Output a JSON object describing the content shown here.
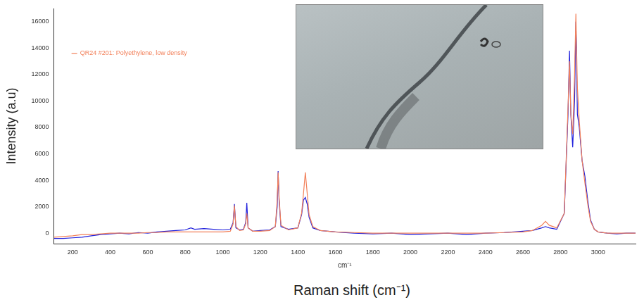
{
  "chart_data": {
    "type": "line",
    "ylabel": "Intensity (a.u)",
    "xlabel": "Raman shift (cm⁻¹)",
    "annotations": [
      "cm⁻¹"
    ],
    "xlim": [
      100,
      3200
    ],
    "xticks": [
      200,
      400,
      600,
      800,
      1000,
      1200,
      1400,
      1600,
      1800,
      2000,
      2200,
      2400,
      2600,
      2800,
      3000
    ],
    "ylim": [
      -800,
      17000
    ],
    "yticks": [
      0,
      2000,
      4000,
      6000,
      8000,
      10000,
      12000,
      14000,
      16000
    ],
    "grid": false,
    "legend": "upper left",
    "x": [
      100,
      150,
      200,
      250,
      300,
      350,
      400,
      450,
      500,
      550,
      600,
      650,
      700,
      750,
      800,
      830,
      850,
      900,
      950,
      1000,
      1040,
      1055,
      1062,
      1070,
      1090,
      1110,
      1122,
      1128,
      1135,
      1160,
      1200,
      1250,
      1280,
      1290,
      1295,
      1300,
      1310,
      1350,
      1400,
      1420,
      1430,
      1440,
      1450,
      1460,
      1480,
      1520,
      1600,
      1700,
      1800,
      1900,
      2000,
      2100,
      2200,
      2300,
      2400,
      2500,
      2600,
      2650,
      2700,
      2720,
      2740,
      2780,
      2820,
      2840,
      2848,
      2855,
      2865,
      2875,
      2882,
      2890,
      2900,
      2915,
      2930,
      2945,
      2960,
      2980,
      3000,
      3050,
      3100,
      3150,
      3200
    ],
    "series": [
      {
        "color": "#1f1fdc",
        "values": [
          -400,
          -400,
          -350,
          -300,
          -200,
          -100,
          -50,
          0,
          -50,
          50,
          0,
          100,
          150,
          200,
          250,
          400,
          300,
          350,
          300,
          250,
          300,
          800,
          2200,
          400,
          250,
          300,
          800,
          2300,
          400,
          150,
          200,
          250,
          500,
          2000,
          4700,
          2500,
          500,
          300,
          400,
          1400,
          2500,
          2700,
          2200,
          1200,
          400,
          200,
          100,
          0,
          -50,
          0,
          -100,
          -50,
          0,
          -100,
          0,
          50,
          150,
          200,
          400,
          500,
          400,
          300,
          1500,
          9000,
          13800,
          9000,
          6500,
          10000,
          16000,
          9000,
          8000,
          5500,
          4300,
          2500,
          1000,
          300,
          100,
          0,
          -50,
          0,
          0
        ]
      },
      {
        "name": "QR24 #201: Polyethylene, low density",
        "color": "#f2805a",
        "values": [
          -300,
          -250,
          -200,
          -100,
          -100,
          -50,
          0,
          0,
          0,
          0,
          50,
          50,
          100,
          100,
          100,
          100,
          100,
          100,
          100,
          100,
          150,
          700,
          2100,
          500,
          200,
          250,
          700,
          1500,
          400,
          150,
          150,
          200,
          500,
          2500,
          4600,
          2800,
          600,
          250,
          400,
          1500,
          3000,
          4600,
          3000,
          1400,
          500,
          200,
          100,
          50,
          0,
          0,
          0,
          0,
          0,
          0,
          0,
          50,
          100,
          200,
          600,
          900,
          600,
          400,
          1500,
          9500,
          13000,
          9000,
          7500,
          12000,
          16600,
          11000,
          8500,
          5500,
          3800,
          2200,
          900,
          300,
          100,
          0,
          0,
          0,
          0
        ]
      }
    ]
  }
}
